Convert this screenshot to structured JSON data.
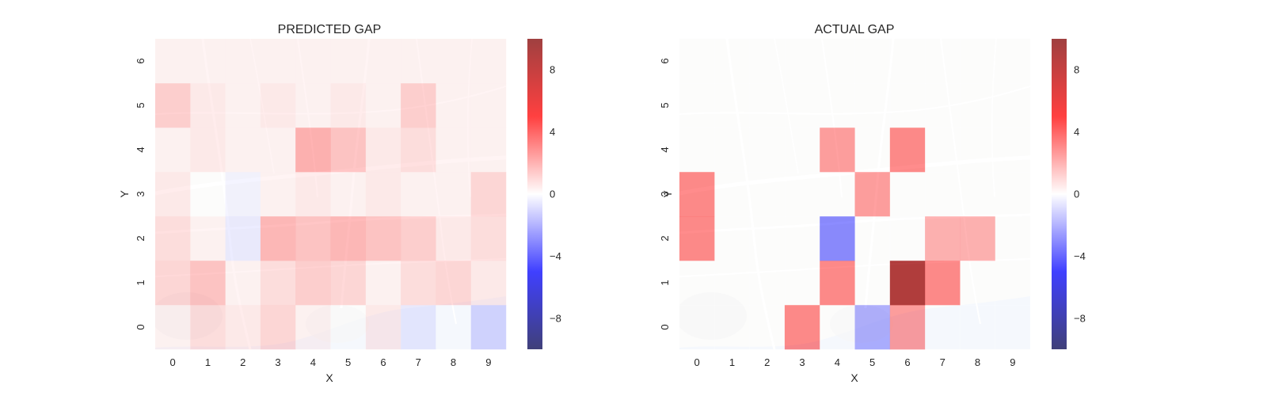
{
  "chart_data": [
    {
      "type": "heatmap",
      "title": "PREDICTED GAP",
      "xlabel": "X",
      "ylabel": "Y",
      "x_ticks": [
        "0",
        "1",
        "2",
        "3",
        "4",
        "5",
        "6",
        "7",
        "8",
        "9"
      ],
      "y_ticks": [
        "0",
        "1",
        "2",
        "3",
        "4",
        "5",
        "6"
      ],
      "colormap": "seismic",
      "vlim": [
        -10,
        10
      ],
      "colorbar_ticks": [
        "8",
        "4",
        "0",
        "−4",
        "−8"
      ],
      "colorbar_tick_values": [
        8,
        4,
        0,
        -4,
        -8
      ],
      "background": "street map of Porto",
      "grid": false,
      "z": [
        [
          0.3,
          0.8,
          0.5,
          1.0,
          0.3,
          0.0,
          0.5,
          -0.5,
          0.0,
          -1.0
        ],
        [
          1.0,
          1.5,
          0.3,
          0.8,
          1.2,
          1.0,
          0.3,
          0.8,
          1.0,
          0.5
        ],
        [
          0.8,
          0.3,
          -0.5,
          1.8,
          1.5,
          1.8,
          1.5,
          1.2,
          0.5,
          0.8
        ],
        [
          0.5,
          0.0,
          -0.3,
          0.3,
          0.5,
          0.3,
          0.5,
          0.3,
          0.3,
          1.0
        ],
        [
          0.3,
          0.5,
          0.3,
          0.3,
          2.0,
          1.5,
          0.5,
          0.8,
          0.3,
          0.3
        ],
        [
          1.2,
          0.5,
          0.3,
          0.5,
          0.3,
          0.5,
          0.3,
          1.2,
          0.3,
          0.3
        ],
        [
          0.3,
          0.3,
          0.3,
          0.3,
          0.3,
          0.3,
          0.3,
          0.3,
          0.3,
          0.3
        ]
      ]
    },
    {
      "type": "heatmap",
      "title": "ACTUAL GAP",
      "xlabel": "X",
      "ylabel": "Y",
      "x_ticks": [
        "0",
        "1",
        "2",
        "3",
        "4",
        "5",
        "6",
        "7",
        "8",
        "9"
      ],
      "y_ticks": [
        "0",
        "1",
        "2",
        "3",
        "4",
        "5",
        "6"
      ],
      "colormap": "seismic",
      "vlim": [
        -10,
        10
      ],
      "colorbar_ticks": [
        "8",
        "4",
        "0",
        "−4",
        "−8"
      ],
      "colorbar_tick_values": [
        8,
        4,
        0,
        -4,
        -8
      ],
      "background": "street map of Porto",
      "grid": false,
      "z": [
        [
          0.0,
          0.0,
          0.0,
          3.0,
          0.0,
          -2.0,
          2.5,
          0.0,
          0.0,
          0.0
        ],
        [
          0.0,
          0.0,
          0.0,
          0.0,
          3.0,
          0.0,
          9.0,
          3.0,
          0.0,
          0.0
        ],
        [
          3.0,
          0.0,
          0.0,
          0.0,
          -3.0,
          0.0,
          0.0,
          2.0,
          2.0,
          0.0
        ],
        [
          3.0,
          0.0,
          0.0,
          0.0,
          0.0,
          2.5,
          0.0,
          0.0,
          0.0,
          0.0
        ],
        [
          0.0,
          0.0,
          0.0,
          0.0,
          2.5,
          0.0,
          3.0,
          0.0,
          0.0,
          0.0
        ],
        [
          0.0,
          0.0,
          0.0,
          0.0,
          0.0,
          0.0,
          0.0,
          0.0,
          0.0,
          0.0
        ],
        [
          0.0,
          0.0,
          0.0,
          0.0,
          0.0,
          0.0,
          0.0,
          0.0,
          0.0,
          0.0
        ]
      ]
    }
  ]
}
